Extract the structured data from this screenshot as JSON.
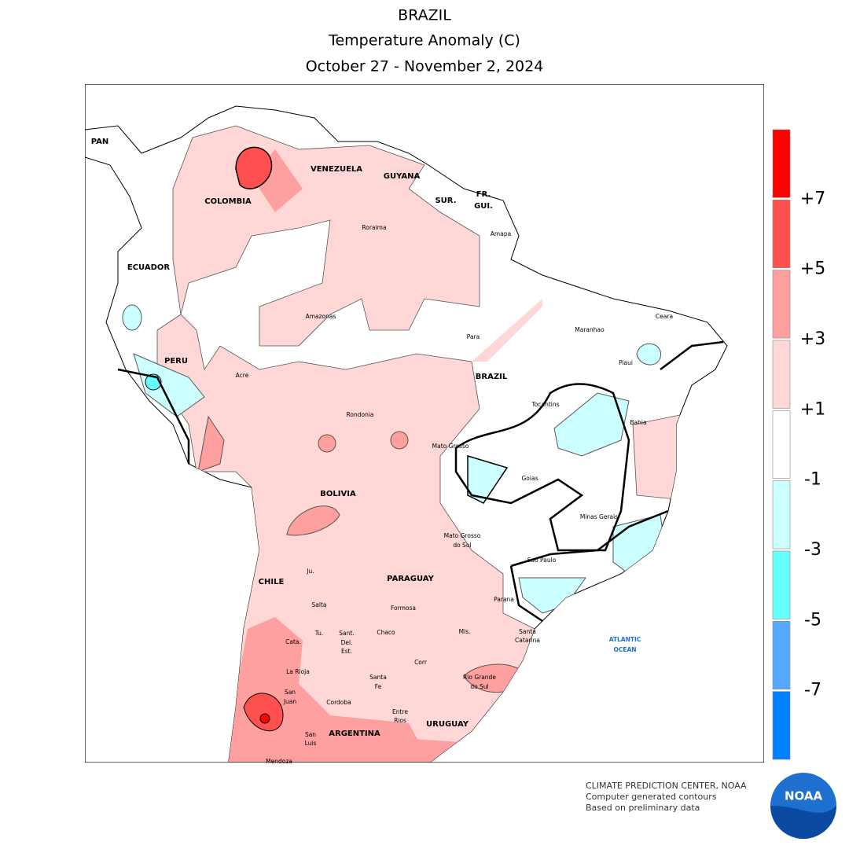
{
  "header": {
    "title": "BRAZIL",
    "subtitle": "Temperature Anomaly (C)",
    "dates": "October 27 - November 2, 2024"
  },
  "legend": {
    "labels": [
      "+7",
      "+5",
      "+3",
      "+1",
      "-1",
      "-3",
      "-5",
      "-7"
    ],
    "colors": [
      "#ff0000",
      "#ff5050",
      "#ffa0a0",
      "#ffd7d7",
      "#ffffff",
      "#ccffff",
      "#66ffff",
      "#55aaff",
      "#0080ff"
    ]
  },
  "countries": [
    "PAN",
    "COLOMBIA",
    "VENEZUELA",
    "GUYANA",
    "SUR.",
    "FR.",
    "GUI.",
    "ECUADOR",
    "PERU",
    "BRAZIL",
    "BOLIVIA",
    "CHILE",
    "PARAGUAY",
    "ARGENTINA",
    "URUGUAY"
  ],
  "regions": [
    "Roraima",
    "Amapa",
    "Amazonas",
    "Para",
    "Maranhao",
    "Ceara",
    "Piaui",
    "Acre",
    "Rondonia",
    "Tocantins",
    "Bahia",
    "Mato Grosso",
    "Goias",
    "Minas Gerais",
    "Mato Grosso",
    "do Sul",
    "Sao Paulo",
    "Parana",
    "Santa",
    "Catarina",
    "Rio Grande",
    "do Sul",
    "Ju.",
    "Salta",
    "Formosa",
    "Chaco",
    "Tu.",
    "Sant.",
    "Del.",
    "Est.",
    "Cata.",
    "Mis.",
    "La Rioja",
    "Corr",
    "Santa",
    "Fe",
    "San",
    "Juan",
    "Cordoba",
    "Entre",
    "Rios",
    "San",
    "Luis",
    "Mendoza"
  ],
  "ocean": [
    "ATLANTIC",
    "OCEAN"
  ],
  "footer": [
    "CLIMATE PREDICTION CENTER, NOAA",
    "Computer generated contours",
    "Based on preliminary data"
  ],
  "logo": "NOAA"
}
